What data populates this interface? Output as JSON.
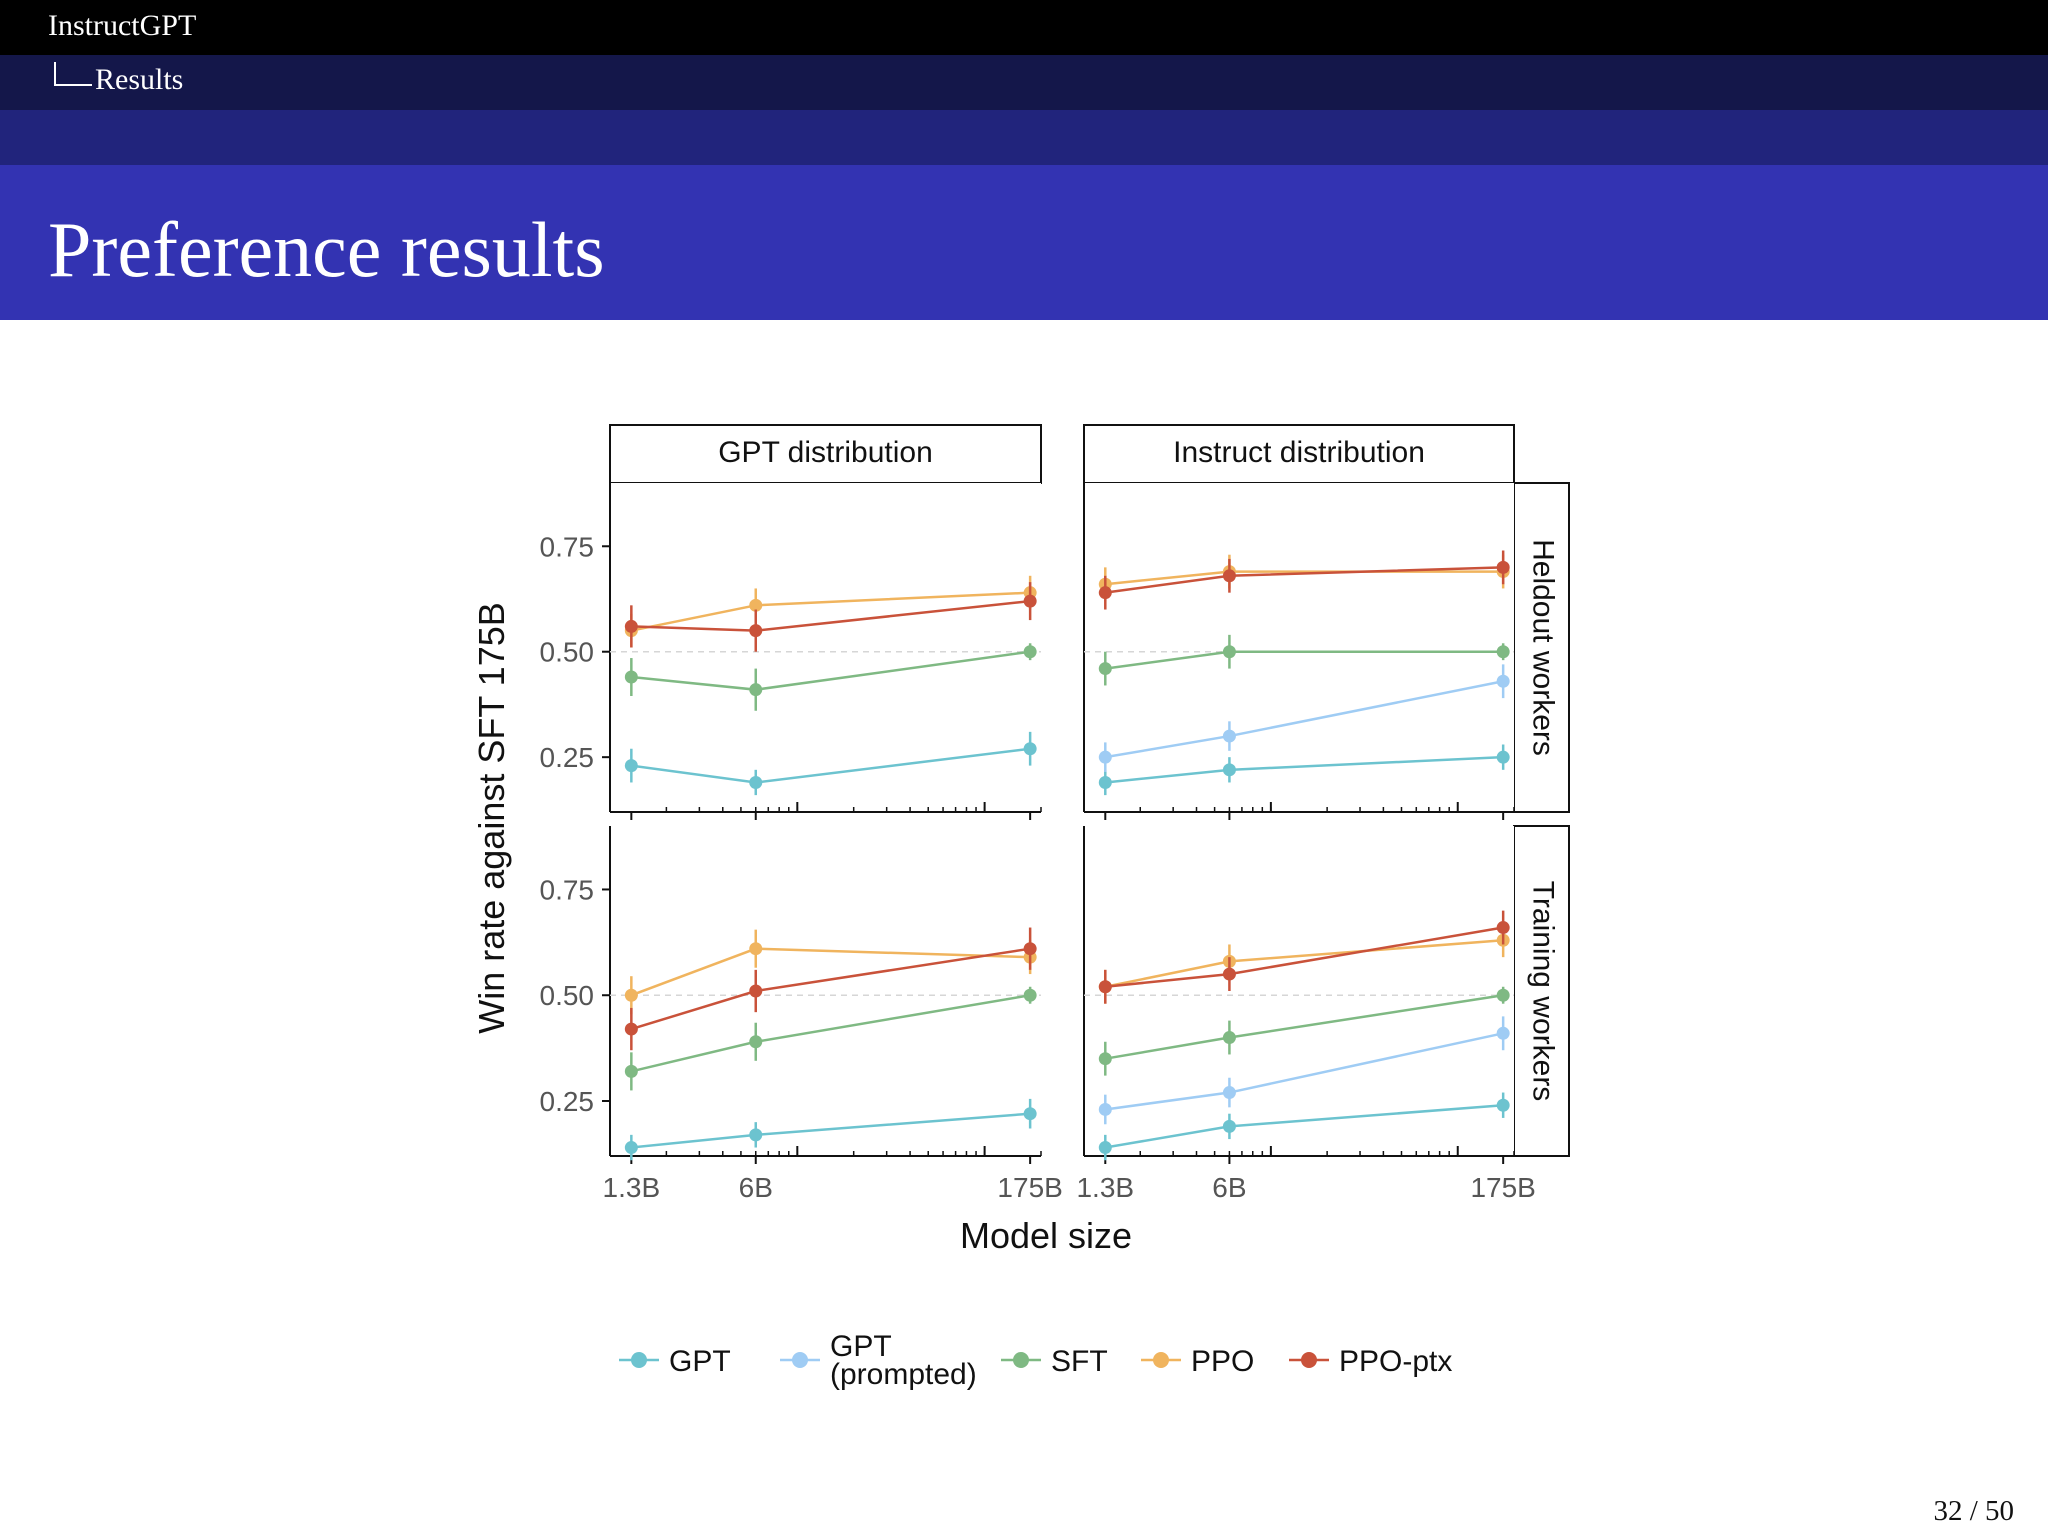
{
  "header": {
    "section": "InstructGPT",
    "subsection": "Results",
    "title": "Preference results"
  },
  "footer": {
    "page": "32 / 50"
  },
  "colors": {
    "GPT": "#6cc3cf",
    "GPT (prompted)": "#9fccf4",
    "SFT": "#7fb983",
    "PPO": "#f0b45e",
    "PPO-ptx": "#c9523a"
  },
  "chart_data": {
    "type": "line",
    "ylabel": "Win rate against SFT 175B",
    "xlabel": "Model size",
    "x_scale": "log",
    "categories": [
      "1.3B",
      "6B",
      "175B"
    ],
    "x_params_billions": [
      1.3,
      6,
      175
    ],
    "ylim": [
      0.12,
      0.9
    ],
    "yticks": [
      "0.25",
      "0.50",
      "0.75"
    ],
    "ytick_values": [
      0.25,
      0.5,
      0.75
    ],
    "reference_line": 0.5,
    "columns": [
      "GPT distribution",
      "Instruct distribution"
    ],
    "rows": [
      "Heldout workers",
      "Training workers"
    ],
    "legend": [
      {
        "label": "GPT"
      },
      {
        "label": "GPT",
        "label2": "(prompted)"
      },
      {
        "label": "SFT"
      },
      {
        "label": "PPO"
      },
      {
        "label": "PPO-ptx"
      }
    ],
    "panels": [
      {
        "column": "GPT distribution",
        "row": "Heldout workers",
        "series": [
          {
            "name": "GPT",
            "values": [
              0.23,
              0.19,
              0.27
            ],
            "err": [
              0.04,
              0.03,
              0.04
            ]
          },
          {
            "name": "SFT",
            "values": [
              0.44,
              0.41,
              0.5
            ],
            "err": [
              0.045,
              0.05,
              0.02
            ]
          },
          {
            "name": "PPO",
            "values": [
              0.55,
              0.61,
              0.64
            ],
            "err": [
              0.04,
              0.04,
              0.04
            ]
          },
          {
            "name": "PPO-ptx",
            "values": [
              0.56,
              0.55,
              0.62
            ],
            "err": [
              0.05,
              0.05,
              0.045
            ]
          }
        ]
      },
      {
        "column": "Instruct distribution",
        "row": "Heldout workers",
        "series": [
          {
            "name": "GPT",
            "values": [
              0.19,
              0.22,
              0.25
            ],
            "err": [
              0.03,
              0.03,
              0.03
            ]
          },
          {
            "name": "GPT (prompted)",
            "values": [
              0.25,
              0.3,
              0.43
            ],
            "err": [
              0.035,
              0.035,
              0.04
            ]
          },
          {
            "name": "SFT",
            "values": [
              0.46,
              0.5,
              0.5
            ],
            "err": [
              0.04,
              0.04,
              0.02
            ]
          },
          {
            "name": "PPO",
            "values": [
              0.66,
              0.69,
              0.69
            ],
            "err": [
              0.04,
              0.04,
              0.04
            ]
          },
          {
            "name": "PPO-ptx",
            "values": [
              0.64,
              0.68,
              0.7
            ],
            "err": [
              0.04,
              0.04,
              0.04
            ]
          }
        ]
      },
      {
        "column": "GPT distribution",
        "row": "Training workers",
        "series": [
          {
            "name": "GPT",
            "values": [
              0.14,
              0.17,
              0.22
            ],
            "err": [
              0.03,
              0.03,
              0.035
            ]
          },
          {
            "name": "SFT",
            "values": [
              0.32,
              0.39,
              0.5
            ],
            "err": [
              0.045,
              0.045,
              0.02
            ]
          },
          {
            "name": "PPO",
            "values": [
              0.5,
              0.61,
              0.59
            ],
            "err": [
              0.045,
              0.045,
              0.04
            ]
          },
          {
            "name": "PPO-ptx",
            "values": [
              0.42,
              0.51,
              0.61
            ],
            "err": [
              0.05,
              0.05,
              0.05
            ]
          }
        ]
      },
      {
        "column": "Instruct distribution",
        "row": "Training workers",
        "series": [
          {
            "name": "GPT",
            "values": [
              0.14,
              0.19,
              0.24
            ],
            "err": [
              0.03,
              0.03,
              0.03
            ]
          },
          {
            "name": "GPT (prompted)",
            "values": [
              0.23,
              0.27,
              0.41
            ],
            "err": [
              0.035,
              0.035,
              0.04
            ]
          },
          {
            "name": "SFT",
            "values": [
              0.35,
              0.4,
              0.5
            ],
            "err": [
              0.04,
              0.04,
              0.02
            ]
          },
          {
            "name": "PPO",
            "values": [
              0.52,
              0.58,
              0.63
            ],
            "err": [
              0.04,
              0.04,
              0.04
            ]
          },
          {
            "name": "PPO-ptx",
            "values": [
              0.52,
              0.55,
              0.66
            ],
            "err": [
              0.04,
              0.04,
              0.04
            ]
          }
        ]
      }
    ]
  }
}
